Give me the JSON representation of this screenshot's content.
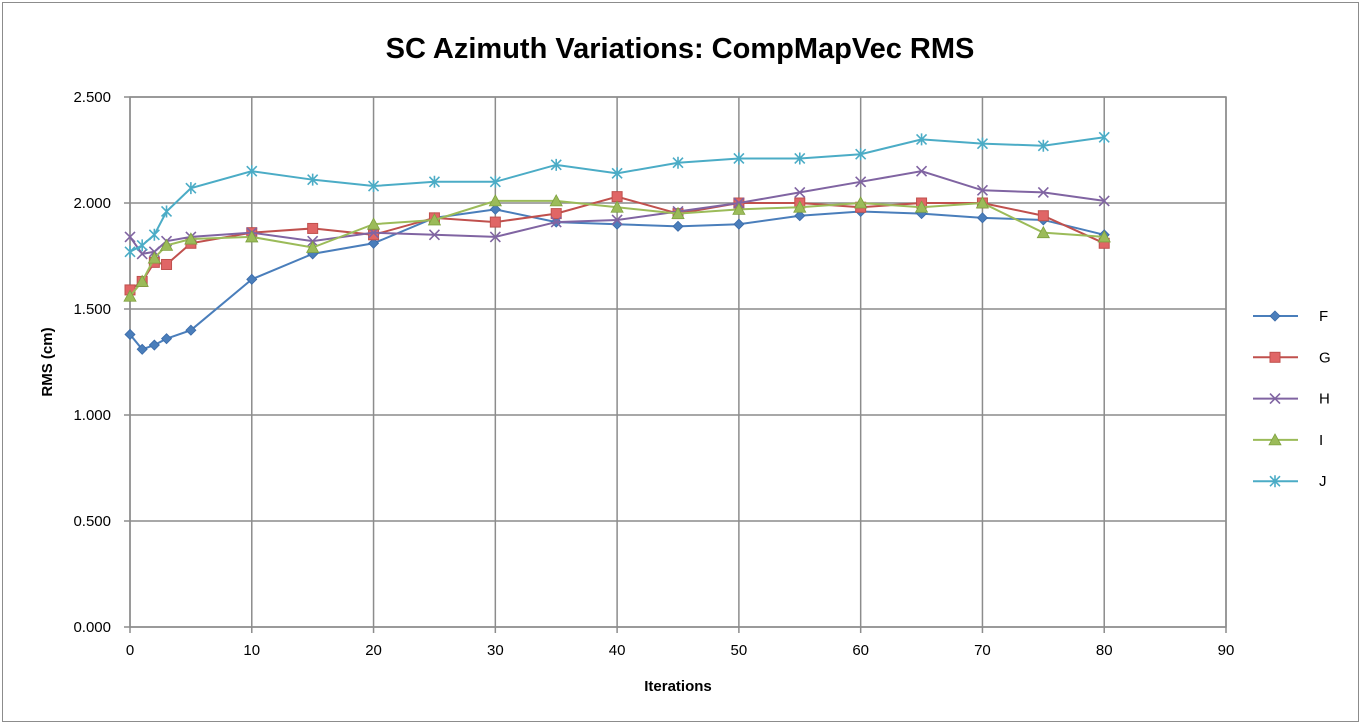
{
  "chart_data": {
    "type": "line",
    "title": "SC Azimuth Variations: CompMapVec RMS",
    "xlabel": "Iterations",
    "ylabel": "RMS (cm)",
    "xlim": [
      0,
      90
    ],
    "ylim": [
      0,
      2.5
    ],
    "x_ticks": [
      "0",
      "10",
      "20",
      "30",
      "40",
      "50",
      "60",
      "70",
      "80",
      "90"
    ],
    "y_ticks": [
      "0.000",
      "0.500",
      "1.000",
      "1.500",
      "2.000",
      "2.500"
    ],
    "grid": true,
    "legend": "right",
    "x": [
      0,
      1,
      2,
      3,
      5,
      10,
      15,
      20,
      25,
      30,
      35,
      40,
      45,
      50,
      55,
      60,
      65,
      70,
      75,
      80
    ],
    "series": [
      {
        "name": "F",
        "color": "#4A7EBB",
        "marker": "diamond",
        "values": [
          1.38,
          1.31,
          1.33,
          1.36,
          1.4,
          1.64,
          1.76,
          1.81,
          1.93,
          1.97,
          1.91,
          1.9,
          1.89,
          1.9,
          1.94,
          1.96,
          1.95,
          1.93,
          1.92,
          1.85
        ]
      },
      {
        "name": "G",
        "color": "#C0504D",
        "marker": "square",
        "values": [
          1.59,
          1.63,
          1.72,
          1.71,
          1.81,
          1.86,
          1.88,
          1.85,
          1.93,
          1.91,
          1.95,
          2.03,
          1.95,
          2.0,
          2.0,
          1.98,
          2.0,
          2.0,
          1.94,
          1.81
        ]
      },
      {
        "name": "H",
        "color": "#8064A2",
        "marker": "x",
        "values": [
          1.84,
          1.76,
          1.77,
          1.82,
          1.84,
          1.86,
          1.82,
          1.86,
          1.85,
          1.84,
          1.91,
          1.92,
          1.96,
          2.0,
          2.05,
          2.1,
          2.15,
          2.06,
          2.05,
          2.01
        ]
      },
      {
        "name": "I",
        "color": "#9BBB59",
        "marker": "triangle",
        "values": [
          1.56,
          1.63,
          1.74,
          1.8,
          1.83,
          1.84,
          1.79,
          1.9,
          1.92,
          2.01,
          2.01,
          1.98,
          1.95,
          1.97,
          1.98,
          2.0,
          1.98,
          2.0,
          1.86,
          1.84
        ]
      },
      {
        "name": "J",
        "color": "#4BACC6",
        "marker": "asterisk",
        "values": [
          1.77,
          1.8,
          1.85,
          1.96,
          2.07,
          2.15,
          2.11,
          2.08,
          2.1,
          2.1,
          2.18,
          2.14,
          2.19,
          2.21,
          2.21,
          2.23,
          2.3,
          2.28,
          2.27,
          2.31
        ]
      }
    ]
  }
}
